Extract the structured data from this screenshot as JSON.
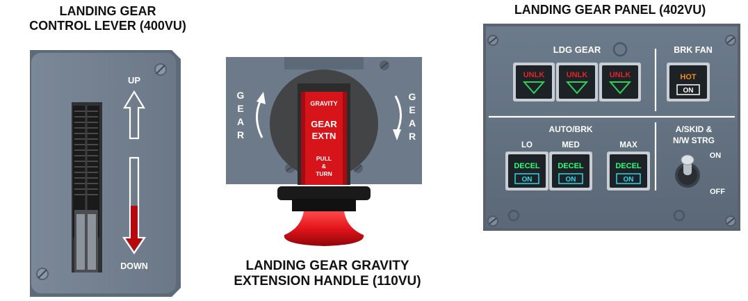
{
  "captions": {
    "lever_l1": "LANDING GEAR",
    "lever_l2": "CONTROL LEVER (400VU)",
    "gravity_l1": "LANDING GEAR GRAVITY",
    "gravity_l2": "EXTENSION HANDLE (110VU)",
    "panel": "LANDING GEAR PANEL (402VU)"
  },
  "lever": {
    "up_label": "UP",
    "down_label": "DOWN"
  },
  "gravity": {
    "left_letters": [
      "G",
      "E",
      "A",
      "R"
    ],
    "right_letters": [
      "G",
      "E",
      "A",
      "R"
    ],
    "handle_top": "GRAVITY",
    "handle_mid1": "GEAR",
    "handle_mid2": "EXTN",
    "handle_bot1": "PULL",
    "handle_bot2": "&",
    "handle_bot3": "TURN"
  },
  "panel": {
    "ldg_gear_title": "LDG GEAR",
    "unlk_label": "UNLK",
    "brk_fan_title": "BRK FAN",
    "brk_fan_hot": "HOT",
    "brk_fan_on": "ON",
    "autobrk_title": "AUTO/BRK",
    "modes": [
      "LO",
      "MED",
      "MAX"
    ],
    "decel_label": "DECEL",
    "decel_on": "ON",
    "askid_title_l1": "A/SKID &",
    "askid_title_l2": "N/W STRG",
    "askid_on": "ON",
    "askid_off": "OFF"
  },
  "colors": {
    "panel_gray": "#5f6d7c",
    "unlk_red": "#e0262b",
    "gear_green": "#2fd15a",
    "hot_amber": "#f28a1e",
    "decel_green": "#2cff7c",
    "on_cyan": "#31d8e8",
    "handle_red": "#d8141b"
  }
}
